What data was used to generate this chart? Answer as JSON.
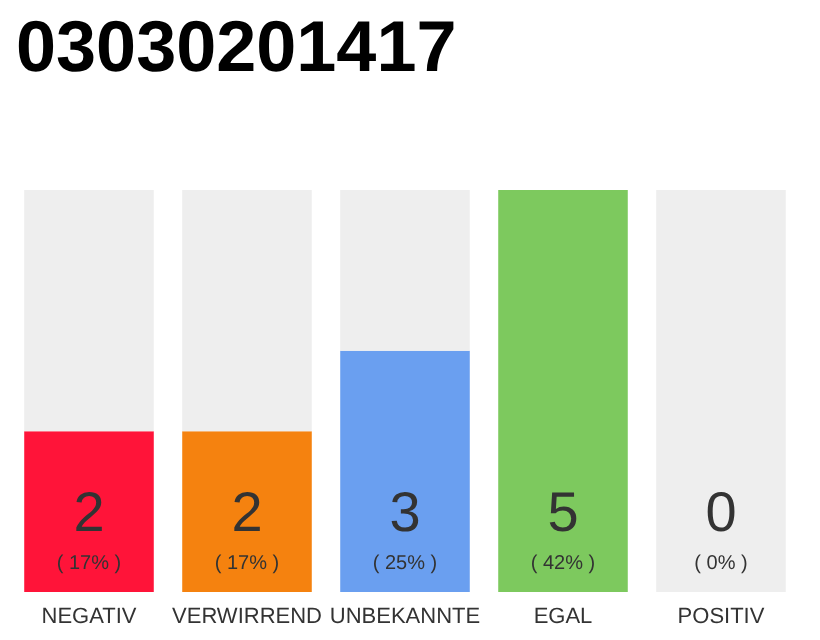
{
  "chart_data": {
    "type": "bar",
    "title": "03030201417",
    "categories": [
      "NEGATIV",
      "VERWIRREND",
      "UNBEKANNTE",
      "EGAL",
      "POSITIV"
    ],
    "series": [
      {
        "colors": [
          "#ff1439",
          "#f5820f",
          "#6a9ff0",
          "#7dc95e",
          "#eeeeee"
        ],
        "values": [
          2,
          2,
          3,
          5,
          0
        ],
        "value_labels": [
          "2",
          "2",
          "3",
          "5",
          null
        ]
      },
      {
        "color": "#eeeeee",
        "values": [
          3,
          3,
          2,
          0,
          5
        ]
      }
    ],
    "stacked": true,
    "annotations": [
      "( 17% )",
      "( 17% )",
      "( 25% )",
      "( 42% )",
      "( 0% )",
      {
        "text": "0",
        "x": "POSITIV",
        "y": 0
      }
    ]
  }
}
